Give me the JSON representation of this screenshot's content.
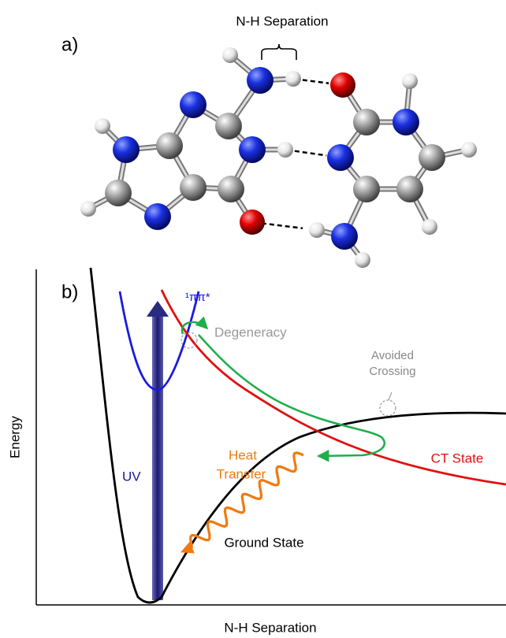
{
  "panel_a": {
    "label": "a)",
    "bracket_label": "N-H Separation"
  },
  "panel_b": {
    "label": "b)",
    "y_axis_label": "Energy",
    "x_axis_label": "N-H Separation",
    "pipi_star": "¹ππ*",
    "degeneracy": "Degeneracy",
    "avoided_crossing": [
      "Avoided",
      "Crossing"
    ],
    "uv": "UV",
    "heat_transfer": [
      "Heat",
      "Transfer"
    ],
    "ct_state": "CT State",
    "ground_state": "Ground State"
  }
}
